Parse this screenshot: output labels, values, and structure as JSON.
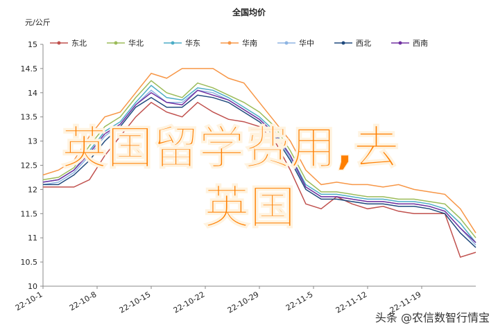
{
  "chart_data": {
    "type": "line",
    "title": "全国均价",
    "y_label": "元/公斤",
    "x": [
      "22-10-1",
      "22-10-3",
      "22-10-5",
      "22-10-7",
      "22-10-9",
      "22-10-11",
      "22-10-13",
      "22-10-15",
      "22-10-17",
      "22-10-19",
      "22-10-21",
      "22-10-23",
      "22-10-25",
      "22-10-27",
      "22-10-29",
      "22-10-31",
      "22-11-2",
      "22-11-4",
      "22-11-6",
      "22-11-8",
      "22-11-10",
      "22-11-12",
      "22-11-14",
      "22-11-16",
      "22-11-18",
      "22-11-20",
      "22-11-22",
      "22-11-24",
      "22-11-26"
    ],
    "xlim": [
      "22-10-1",
      "22-11-26"
    ],
    "xticks": [
      "22-10-1",
      "22-10-8",
      "22-10-15",
      "22-10-22",
      "22-10-29",
      "22-11-5",
      "22-11-12",
      "22-11-19"
    ],
    "ylim": [
      10,
      15
    ],
    "yticks": [
      10,
      10.5,
      11,
      11.5,
      12,
      12.5,
      13,
      13.5,
      14,
      14.5,
      15
    ],
    "legend": "top",
    "grid": false,
    "series": [
      {
        "name": "东北",
        "color": "#c0504d",
        "values": [
          12.05,
          12.05,
          12.05,
          12.2,
          12.7,
          13.1,
          13.5,
          13.8,
          13.6,
          13.5,
          13.8,
          13.6,
          13.45,
          13.4,
          13.3,
          13.0,
          12.4,
          11.7,
          11.6,
          11.85,
          11.7,
          11.6,
          11.65,
          11.55,
          11.5,
          11.5,
          11.5,
          10.6,
          10.7
        ]
      },
      {
        "name": "华北",
        "color": "#9bbb59",
        "values": [
          12.2,
          12.25,
          12.45,
          12.9,
          13.3,
          13.5,
          13.9,
          14.25,
          14.0,
          13.9,
          14.2,
          14.1,
          13.95,
          13.8,
          13.6,
          13.3,
          12.8,
          12.2,
          11.95,
          11.95,
          11.9,
          11.85,
          11.85,
          11.8,
          11.8,
          11.75,
          11.7,
          11.4,
          11.0
        ]
      },
      {
        "name": "华东",
        "color": "#4bacc6",
        "values": [
          12.15,
          12.2,
          12.4,
          12.8,
          13.2,
          13.4,
          13.8,
          14.15,
          13.9,
          13.85,
          14.1,
          14.05,
          13.9,
          13.7,
          13.5,
          13.2,
          12.7,
          12.1,
          11.9,
          11.9,
          11.85,
          11.8,
          11.8,
          11.75,
          11.75,
          11.7,
          11.6,
          11.3,
          10.9
        ]
      },
      {
        "name": "华南",
        "color": "#f79646",
        "values": [
          12.3,
          12.4,
          12.6,
          13.1,
          13.5,
          13.6,
          14.0,
          14.4,
          14.3,
          14.5,
          14.5,
          14.5,
          14.3,
          14.2,
          13.8,
          13.4,
          13.0,
          12.4,
          12.1,
          12.15,
          12.1,
          12.1,
          12.05,
          12.1,
          12.0,
          11.95,
          11.9,
          11.6,
          11.1
        ]
      },
      {
        "name": "华中",
        "color": "#8db4e2",
        "values": [
          12.1,
          12.15,
          12.35,
          12.7,
          13.1,
          13.35,
          13.75,
          14.05,
          13.8,
          13.8,
          14.05,
          14.0,
          13.85,
          13.65,
          13.45,
          13.15,
          12.65,
          12.05,
          11.85,
          11.85,
          11.8,
          11.75,
          11.75,
          11.7,
          11.7,
          11.65,
          11.55,
          11.2,
          10.85
        ]
      },
      {
        "name": "西北",
        "color": "#1f497d",
        "values": [
          12.1,
          12.1,
          12.3,
          12.6,
          13.0,
          13.3,
          13.7,
          13.9,
          13.7,
          13.7,
          13.95,
          13.9,
          13.8,
          13.6,
          13.4,
          13.1,
          12.6,
          12.0,
          11.8,
          11.8,
          11.75,
          11.7,
          11.7,
          11.65,
          11.65,
          11.6,
          11.5,
          11.1,
          10.8
        ]
      },
      {
        "name": "西南",
        "color": "#7030a0",
        "values": [
          12.15,
          12.2,
          12.4,
          12.75,
          13.15,
          13.35,
          13.75,
          14.0,
          13.8,
          13.75,
          14.05,
          13.95,
          13.85,
          13.65,
          13.45,
          13.15,
          12.7,
          12.05,
          11.85,
          11.85,
          11.8,
          11.75,
          11.75,
          11.7,
          11.7,
          11.65,
          11.55,
          11.2,
          10.9
        ]
      }
    ]
  },
  "overlay": {
    "lines": [
      "英国留学费用,去",
      "英国"
    ]
  },
  "watermark": "头条 @农信数智行情宝"
}
